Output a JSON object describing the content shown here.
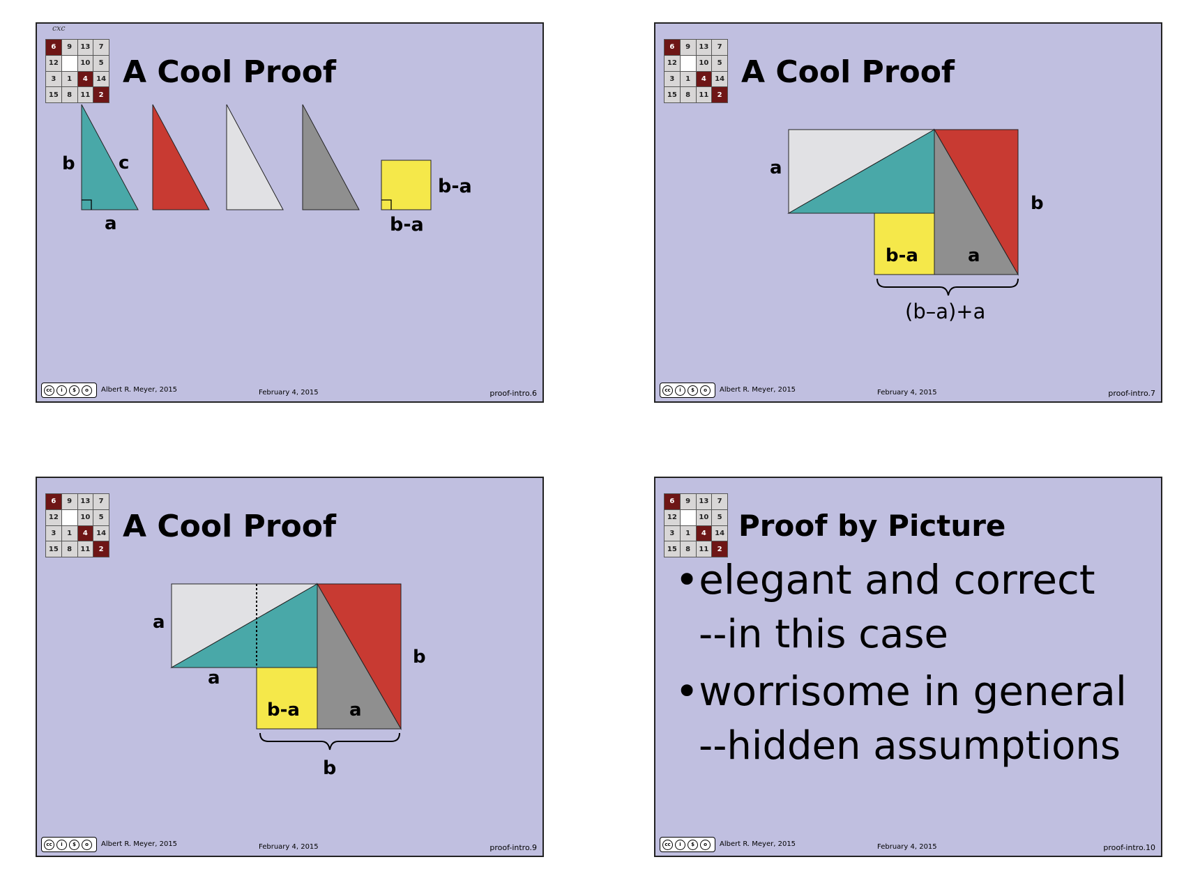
{
  "puzzle": [
    "6",
    "9",
    "13",
    "7",
    "12",
    "",
    "10",
    "5",
    "3",
    "1",
    "4",
    "14",
    "15",
    "8",
    "11",
    "2"
  ],
  "puzzle_dark": [
    0,
    10,
    15
  ],
  "cc_badge": {
    "marks": [
      "cc",
      "i",
      "$",
      "o"
    ],
    "tags": "BY  NC  SA"
  },
  "slide1": {
    "corner_note": "cxc",
    "title": "A Cool Proof",
    "labels": {
      "b": "b",
      "c": "c",
      "a": "a",
      "side": "b-a",
      "bottom": "b-a"
    },
    "footer": {
      "author": "Albert R. Meyer, 2015",
      "date": "February 4,  2015",
      "id": "proof-intro.6"
    }
  },
  "slide2": {
    "title": "A Cool Proof",
    "labels": {
      "a": "a",
      "b": "b",
      "square": "b-a",
      "gray": "a",
      "brace": "(b–a)+a"
    },
    "footer": {
      "author": "Albert R. Meyer, 2015",
      "date": "February 4,  2015",
      "id": "proof-intro.7"
    }
  },
  "slide3": {
    "title": "A Cool Proof",
    "labels": {
      "a_left": "a",
      "a_under": "a",
      "b_right": "b",
      "square": "b-a",
      "gray": "a",
      "brace": "b"
    },
    "footer": {
      "author": "Albert R. Meyer, 2015",
      "date": "February 4,  2015",
      "id": "proof-intro.9"
    }
  },
  "slide4": {
    "title": "Proof by Picture",
    "bullet1": "elegant and correct",
    "sub1": "--in this case",
    "bullet2": "worrisome in general",
    "sub2": "--hidden assumptions",
    "footer": {
      "author": "Albert R. Meyer, 2015",
      "date": "February 4,  2015",
      "id": "proof-intro.10"
    }
  },
  "colors": {
    "teal": "#49a8a8",
    "red": "#c83a32",
    "light": "#e1e1e4",
    "gray": "#8f8f8f",
    "yellow": "#f5e84a",
    "slide_bg": "#c0bfe0"
  }
}
